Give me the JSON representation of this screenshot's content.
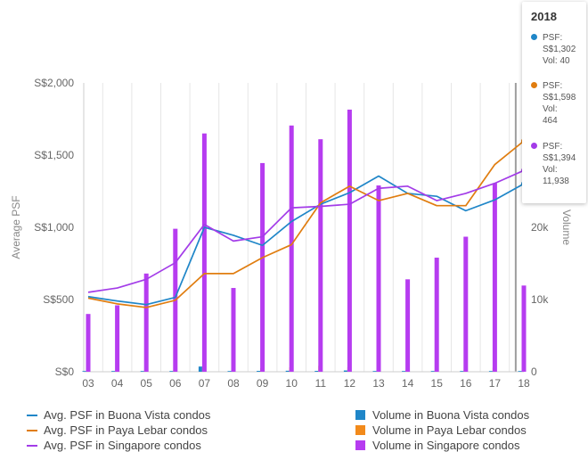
{
  "chart_data": {
    "type": "bar+line",
    "categories": [
      "03",
      "04",
      "05",
      "06",
      "07",
      "08",
      "09",
      "10",
      "11",
      "12",
      "13",
      "14",
      "15",
      "16",
      "17",
      "18"
    ],
    "y_left": {
      "label": "Average PSF",
      "ticks": [
        "S$0",
        "S$500",
        "S$1,000",
        "S$1,500",
        "S$2,000"
      ],
      "min": 0,
      "max": 2000
    },
    "y_right": {
      "label": "Volume",
      "ticks": [
        "0",
        "10k",
        "20k"
      ],
      "min": 0,
      "max": 40000
    },
    "grid": "vertical",
    "series": [
      {
        "name": "Avg. PSF in Buona Vista condos",
        "kind": "line",
        "axis": "left",
        "color": "#1f86c8",
        "values": [
          520,
          490,
          465,
          515,
          1000,
          945,
          875,
          1040,
          1160,
          1240,
          1355,
          1235,
          1215,
          1115,
          1190,
          1302
        ]
      },
      {
        "name": "Avg. PSF in Paya Lebar condos",
        "kind": "line",
        "axis": "left",
        "color": "#e07d10",
        "values": [
          510,
          470,
          445,
          495,
          680,
          680,
          790,
          880,
          1170,
          1285,
          1185,
          1235,
          1150,
          1150,
          1435,
          1598
        ]
      },
      {
        "name": "Avg. PSF in Singapore condos",
        "kind": "line",
        "axis": "left",
        "color": "#a33ce8",
        "values": [
          550,
          580,
          640,
          755,
          1020,
          905,
          935,
          1135,
          1145,
          1160,
          1270,
          1285,
          1185,
          1235,
          1305,
          1394
        ]
      },
      {
        "name": "Volume in Buona Vista condos",
        "kind": "bar",
        "axis": "right",
        "color": "#1f86c8",
        "values": [
          20,
          20,
          20,
          80,
          720,
          80,
          120,
          140,
          120,
          180,
          60,
          80,
          60,
          60,
          40,
          40
        ]
      },
      {
        "name": "Volume in Paya Lebar condos",
        "kind": "bar",
        "axis": "right",
        "color": "#f28a1b",
        "values": [
          40,
          60,
          40,
          160,
          600,
          180,
          500,
          600,
          820,
          620,
          140,
          200,
          100,
          160,
          560,
          464
        ]
      },
      {
        "name": "Volume in Singapore condos",
        "kind": "bar",
        "axis": "right",
        "color": "#b63cf0",
        "values": [
          8000,
          9200,
          13600,
          19800,
          33000,
          11600,
          28900,
          34100,
          32200,
          36300,
          25800,
          12800,
          15800,
          18700,
          26100,
          11938
        ]
      }
    ]
  },
  "tooltip": {
    "title": "2018",
    "entries": [
      {
        "color": "#1f86c8",
        "line1": "PSF:",
        "line2": "S$1,302",
        "line3": "Vol: 40",
        "line4": ""
      },
      {
        "color": "#e07d10",
        "line1": "PSF:",
        "line2": "S$1,598",
        "line3": "Vol:",
        "line4": "464"
      },
      {
        "color": "#a33ce8",
        "line1": "PSF:",
        "line2": "S$1,394",
        "line3": "Vol:",
        "line4": "11,938"
      }
    ]
  },
  "legend": {
    "lines": [
      {
        "label": "Avg. PSF in Buona Vista condos",
        "color": "#1f86c8"
      },
      {
        "label": "Avg. PSF in Paya Lebar condos",
        "color": "#e07d10"
      },
      {
        "label": "Avg. PSF in Singapore condos",
        "color": "#a33ce8"
      }
    ],
    "bars": [
      {
        "label": "Volume in Buona Vista condos",
        "color": "#1f86c8"
      },
      {
        "label": "Volume in Paya Lebar condos",
        "color": "#f28a1b"
      },
      {
        "label": "Volume in Singapore condos",
        "color": "#b63cf0"
      }
    ]
  }
}
